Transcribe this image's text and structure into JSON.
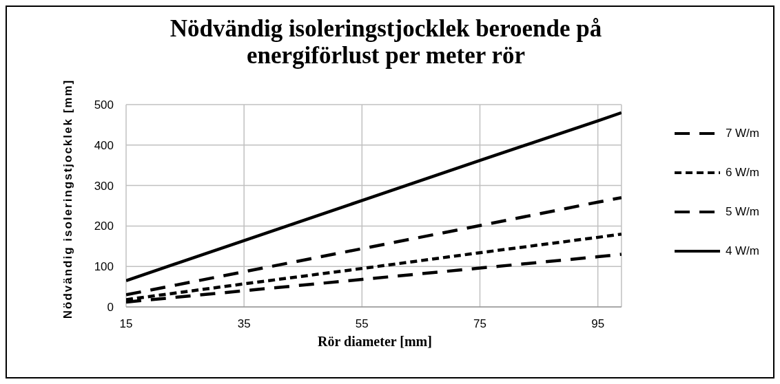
{
  "chart_data": {
    "type": "line",
    "title": "Nödvändig isoleringstjocklek  beroende på energiförlust per meter rör",
    "xlabel": "Rör diameter [mm]",
    "ylabel": "Nödvändig isoleringstjocklek [mm]",
    "x": [
      15,
      35,
      55,
      75,
      95,
      99
    ],
    "xlim": [
      15,
      99
    ],
    "xticks": [
      15,
      35,
      55,
      75,
      95
    ],
    "ylim": [
      0,
      500
    ],
    "yticks": [
      0,
      100,
      200,
      300,
      400,
      500
    ],
    "grid": true,
    "legend": "right",
    "marker": "none",
    "series": [
      {
        "name": "7 W/m",
        "color": "#000000",
        "line_style": "dashed",
        "values": [
          12,
          40,
          68,
          96,
          124,
          130
        ]
      },
      {
        "name": "6 W/m",
        "color": "#000000",
        "line_style": "dotted",
        "values": [
          18,
          57,
          95,
          134,
          172,
          180
        ]
      },
      {
        "name": "5 W/m",
        "color": "#000000",
        "line_style": "dashed",
        "values": [
          30,
          87,
          144,
          201,
          259,
          270
        ]
      },
      {
        "name": "4 W/m",
        "color": "#000000",
        "line_style": "solid",
        "values": [
          65,
          164,
          263,
          362,
          460,
          480
        ]
      }
    ]
  }
}
